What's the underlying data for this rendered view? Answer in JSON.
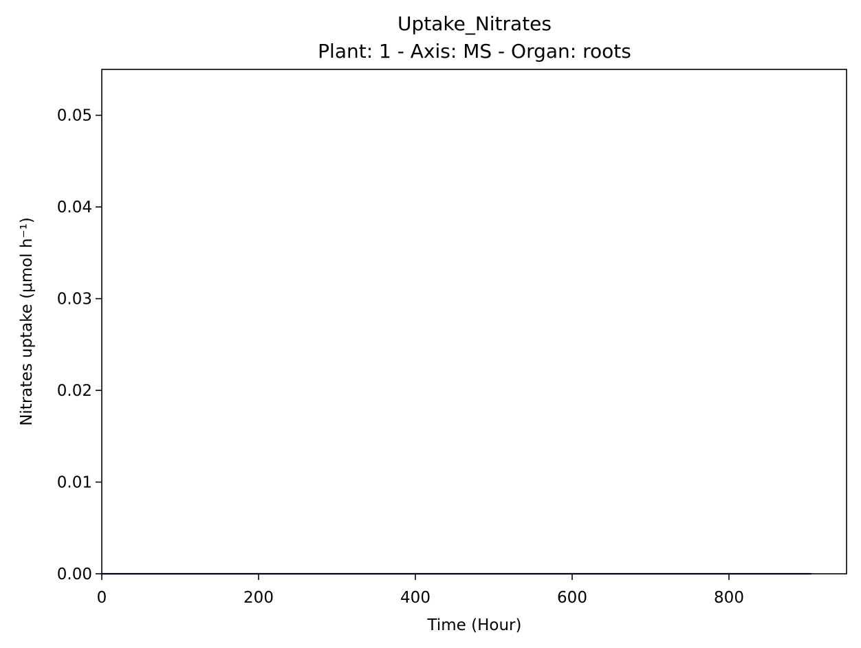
{
  "chart_data": {
    "type": "line",
    "title": "Uptake_Nitrates",
    "subtitle": "Plant: 1 - Axis: MS - Organ: roots",
    "xlabel": "Time (Hour)",
    "ylabel": "Nitrates uptake (μmol h⁻¹)",
    "xlim": [
      0,
      950
    ],
    "ylim": [
      0,
      0.055
    ],
    "xticks": [
      0,
      200,
      400,
      600,
      800
    ],
    "xtick_labels": [
      "0",
      "200",
      "400",
      "600",
      "800"
    ],
    "yticks": [
      0,
      0.01,
      0.02,
      0.03,
      0.04,
      0.05
    ],
    "ytick_labels": [
      "0.00",
      "0.01",
      "0.02",
      "0.03",
      "0.04",
      "0.05"
    ],
    "grid": false,
    "series": [
      {
        "color": "#000080",
        "x": [
          0,
          905
        ],
        "y": [
          0,
          0
        ]
      }
    ]
  }
}
